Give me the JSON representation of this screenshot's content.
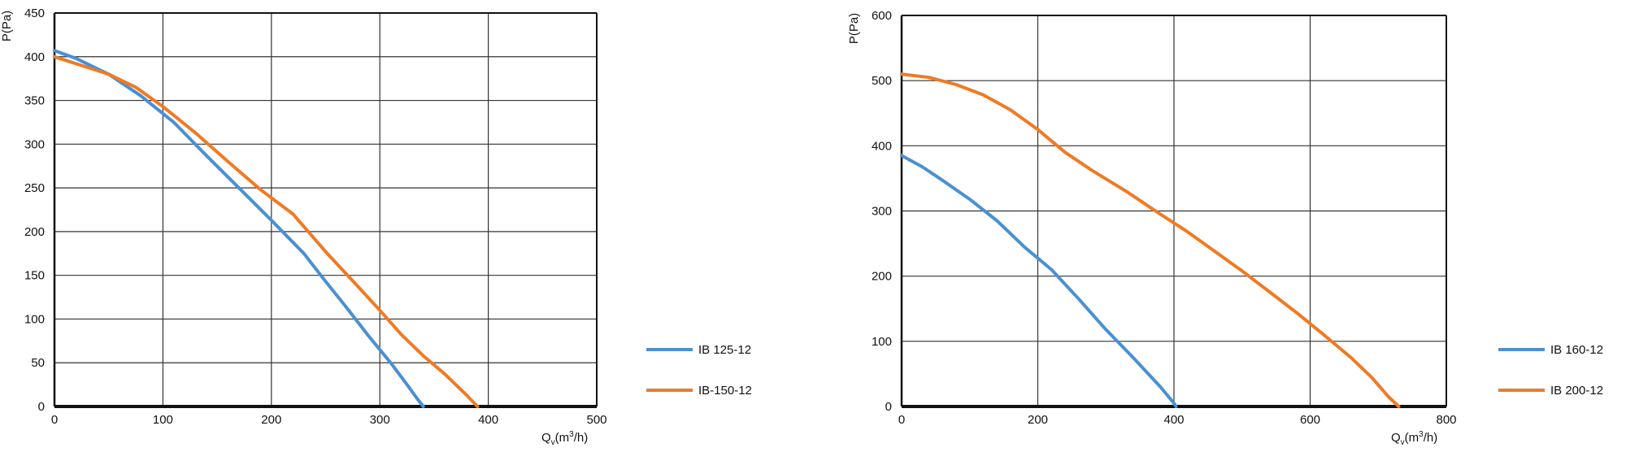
{
  "chart_data": [
    {
      "type": "line",
      "ylabel": "P(Pa)",
      "xlabel": {
        "main": "Q",
        "sub": "v",
        "unit_pre": "(m",
        "sup": "3",
        "unit_post": "/h)"
      },
      "xlim": [
        0,
        500
      ],
      "ylim": [
        0,
        450
      ],
      "x_ticks": [
        "0",
        "100",
        "200",
        "300",
        "400",
        "500"
      ],
      "y_ticks": [
        "0",
        "50",
        "100",
        "150",
        "200",
        "250",
        "300",
        "350",
        "400",
        "450"
      ],
      "grid": true,
      "legend_position": "right",
      "series": [
        {
          "name": "IB 125-12",
          "color": "#4a90d2",
          "points": [
            [
              0,
              407
            ],
            [
              20,
              398
            ],
            [
              50,
              380
            ],
            [
              80,
              355
            ],
            [
              110,
              325
            ],
            [
              140,
              287
            ],
            [
              170,
              250
            ],
            [
              200,
              213
            ],
            [
              230,
              175
            ],
            [
              250,
              143
            ],
            [
              270,
              112
            ],
            [
              290,
              80
            ],
            [
              310,
              50
            ],
            [
              325,
              25
            ],
            [
              335,
              8
            ],
            [
              340,
              0
            ]
          ]
        },
        {
          "name": "IB-150-12",
          "color": "#f07a23",
          "points": [
            [
              0,
              400
            ],
            [
              25,
              390
            ],
            [
              50,
              380
            ],
            [
              75,
              365
            ],
            [
              100,
              343
            ],
            [
              130,
              313
            ],
            [
              160,
              280
            ],
            [
              190,
              248
            ],
            [
              220,
              220
            ],
            [
              250,
              177
            ],
            [
              280,
              137
            ],
            [
              300,
              110
            ],
            [
              320,
              82
            ],
            [
              340,
              58
            ],
            [
              360,
              37
            ],
            [
              380,
              13
            ],
            [
              390,
              0
            ]
          ]
        }
      ]
    },
    {
      "type": "line",
      "ylabel": "P(Pa)",
      "xlabel": {
        "main": "Q",
        "sub": "v",
        "unit_pre": "(m",
        "sup": "3",
        "unit_post": "/h)"
      },
      "xlim": [
        0,
        800
      ],
      "ylim": [
        0,
        600
      ],
      "x_ticks": [
        "0",
        "200",
        "400",
        "600",
        "800"
      ],
      "y_ticks": [
        "0",
        "100",
        "200",
        "300",
        "400",
        "500",
        "600"
      ],
      "grid": true,
      "legend_position": "right",
      "series": [
        {
          "name": "IB 160-12",
          "color": "#4a90d2",
          "points": [
            [
              0,
              385
            ],
            [
              30,
              368
            ],
            [
              60,
              347
            ],
            [
              100,
              318
            ],
            [
              140,
              285
            ],
            [
              180,
              245
            ],
            [
              220,
              210
            ],
            [
              260,
              165
            ],
            [
              300,
              118
            ],
            [
              340,
              75
            ],
            [
              380,
              30
            ],
            [
              400,
              5
            ],
            [
              403,
              0
            ]
          ]
        },
        {
          "name": "IB 200-12",
          "color": "#f07a23",
          "points": [
            [
              0,
              510
            ],
            [
              40,
              505
            ],
            [
              80,
              494
            ],
            [
              120,
              478
            ],
            [
              160,
              455
            ],
            [
              200,
              425
            ],
            [
              240,
              390
            ],
            [
              280,
              362
            ],
            [
              330,
              330
            ],
            [
              380,
              295
            ],
            [
              420,
              268
            ],
            [
              460,
              238
            ],
            [
              500,
              208
            ],
            [
              540,
              176
            ],
            [
              580,
              144
            ],
            [
              620,
              110
            ],
            [
              660,
              75
            ],
            [
              690,
              45
            ],
            [
              715,
              15
            ],
            [
              730,
              0
            ]
          ]
        }
      ]
    }
  ]
}
